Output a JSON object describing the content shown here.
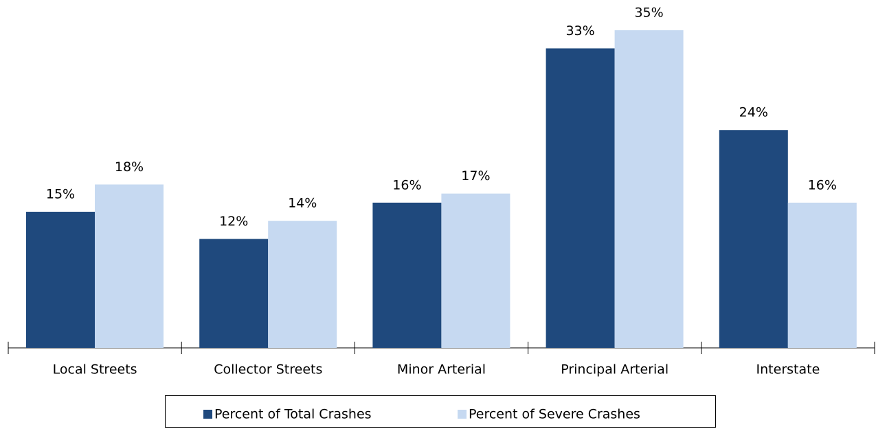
{
  "chart_data": {
    "type": "bar",
    "categories": [
      "Local Streets",
      "Collector Streets",
      "Minor Arterial",
      "Principal Arterial",
      "Interstate"
    ],
    "series": [
      {
        "name": "Percent of Total Crashes",
        "color": "#1f497d",
        "values": [
          15,
          12,
          16,
          33,
          24
        ],
        "value_labels": [
          "15%",
          "12%",
          "16%",
          "33%",
          "24%"
        ]
      },
      {
        "name": "Percent of Severe Crashes",
        "color": "#c6d9f1",
        "values": [
          18,
          14,
          17,
          35,
          16
        ],
        "value_labels": [
          "18%",
          "14%",
          "17%",
          "35%",
          "16%"
        ]
      }
    ],
    "legend": "bottom"
  }
}
